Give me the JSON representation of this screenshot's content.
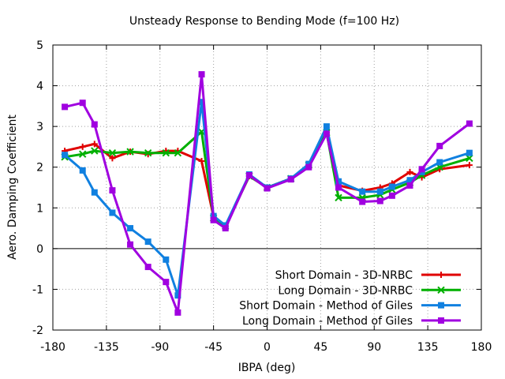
{
  "chart_data": {
    "type": "line",
    "title": "Unsteady Response to Bending Mode (f=100 Hz)",
    "xlabel": "IBPA (deg)",
    "ylabel": "Aero. Damping Coefficient",
    "xlim": [
      -180,
      180
    ],
    "ylim": [
      -2,
      5
    ],
    "xticks": [
      -180,
      -135,
      -90,
      -45,
      0,
      45,
      90,
      135,
      180
    ],
    "yticks": [
      -2,
      -1,
      0,
      1,
      2,
      3,
      4,
      5
    ],
    "grid": true,
    "legend_position": "bottom-right",
    "series": [
      {
        "name": "Short Domain - 3D-NRBC",
        "color": "#e00000",
        "marker": "plus",
        "x": [
          -170,
          -155,
          -145,
          -130,
          -115,
          -100,
          -85,
          -75,
          -55,
          -45,
          -35,
          -15,
          0,
          20,
          35,
          50,
          60,
          80,
          95,
          105,
          120,
          130,
          145,
          170
        ],
        "y": [
          2.4,
          2.5,
          2.57,
          2.22,
          2.38,
          2.32,
          2.4,
          2.4,
          2.15,
          0.78,
          0.55,
          1.78,
          1.5,
          1.72,
          2.05,
          2.85,
          1.55,
          1.42,
          1.5,
          1.6,
          1.88,
          1.75,
          1.95,
          2.05
        ]
      },
      {
        "name": "Long Domain - 3D-NRBC",
        "color": "#00b000",
        "marker": "cross",
        "x": [
          -170,
          -155,
          -145,
          -130,
          -115,
          -100,
          -85,
          -75,
          -55,
          -45,
          -35,
          -15,
          0,
          20,
          35,
          50,
          60,
          80,
          95,
          105,
          120,
          130,
          145,
          170
        ],
        "y": [
          2.25,
          2.32,
          2.4,
          2.35,
          2.38,
          2.35,
          2.35,
          2.35,
          2.87,
          0.75,
          0.55,
          1.78,
          1.5,
          1.72,
          2.05,
          2.85,
          1.25,
          1.25,
          1.32,
          1.45,
          1.62,
          1.8,
          2.0,
          2.22
        ]
      },
      {
        "name": "Short Domain - Method of Giles",
        "color": "#1080e0",
        "marker": "square",
        "x": [
          -170,
          -155,
          -145,
          -130,
          -115,
          -100,
          -85,
          -75,
          -55,
          -45,
          -35,
          -15,
          0,
          20,
          35,
          50,
          60,
          80,
          95,
          105,
          120,
          130,
          145,
          170
        ],
        "y": [
          2.3,
          1.92,
          1.38,
          0.88,
          0.5,
          0.17,
          -0.27,
          -1.15,
          3.6,
          0.8,
          0.57,
          1.82,
          1.5,
          1.72,
          2.08,
          3.0,
          1.65,
          1.4,
          1.4,
          1.52,
          1.68,
          1.88,
          2.12,
          2.35
        ]
      },
      {
        "name": "Long Domain - Method of Giles",
        "color": "#a000e0",
        "marker": "filled-square",
        "x": [
          -170,
          -155,
          -145,
          -130,
          -115,
          -100,
          -85,
          -75,
          -55,
          -45,
          -35,
          -15,
          0,
          20,
          35,
          50,
          60,
          80,
          95,
          105,
          120,
          130,
          145,
          170
        ],
        "y": [
          3.48,
          3.58,
          3.05,
          1.43,
          0.1,
          -0.45,
          -0.82,
          -1.57,
          4.28,
          0.7,
          0.5,
          1.8,
          1.48,
          1.7,
          2.0,
          2.82,
          1.5,
          1.15,
          1.17,
          1.3,
          1.55,
          1.95,
          2.52,
          3.07
        ]
      }
    ]
  }
}
